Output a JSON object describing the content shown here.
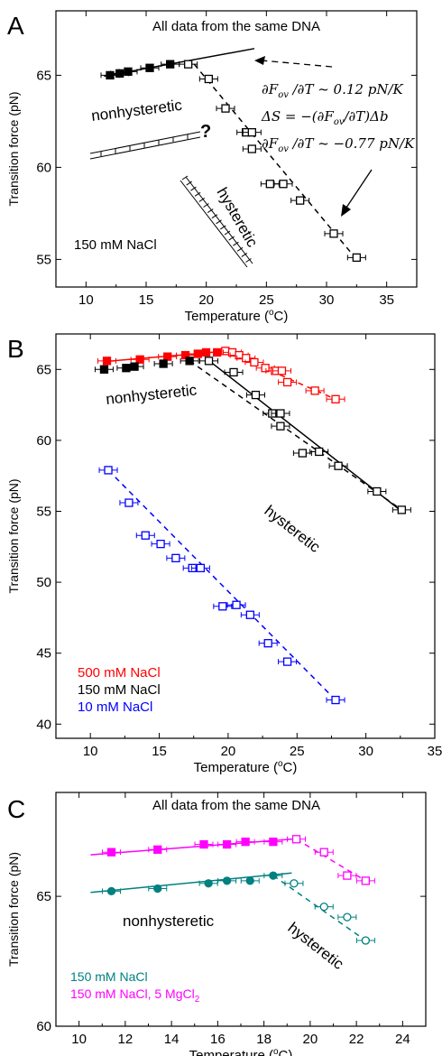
{
  "chart_data": [
    {
      "panel": "A",
      "type": "scatter",
      "annotation": "All data from the same DNA",
      "xlabel": "Temperature (",
      "xlabel_sup": "o",
      "xlabel_end": "C)",
      "ylabel": "Transition force (pN)",
      "xlim": [
        7.5,
        37.5
      ],
      "ylim": [
        53.5,
        68.5
      ],
      "xticks": [
        10,
        15,
        20,
        25,
        30,
        35
      ],
      "yticks": [
        55,
        60,
        65
      ],
      "salt_label": "150 mM NaCl",
      "state_labels": [
        "nonhysteretic",
        "hysteretic"
      ],
      "question_mark": "?",
      "equations": [
        "∂F/∂T ~ 0.12 pN/K",
        "ΔS = −(∂F/∂T)Δb",
        "∂F/∂T ~ −0.77 pN/K"
      ],
      "eq_var": "F",
      "eq_sub": "ov",
      "eq1_rhs": "~ 0.12  pN/K",
      "eq2_lhs": "ΔS = −(∂",
      "eq2_rhs": "/∂T)Δb",
      "eq3_rhs": "~ −0.77  pN/K",
      "series": [
        {
          "marker": "filled-square",
          "color": "#000000",
          "points": [
            [
              12.0,
              65.0
            ],
            [
              12.8,
              65.1
            ],
            [
              13.5,
              65.2
            ],
            [
              15.3,
              65.4
            ],
            [
              17.0,
              65.6
            ]
          ],
          "fit": [
            [
              11.5,
              64.95
            ],
            [
              24.0,
              66.45
            ]
          ]
        },
        {
          "marker": "open-square",
          "color": "#000000",
          "points": [
            [
              18.5,
              65.6
            ],
            [
              20.2,
              64.8
            ],
            [
              21.6,
              63.2
            ],
            [
              23.3,
              61.9
            ],
            [
              23.8,
              61.9
            ],
            [
              23.8,
              61.0
            ],
            [
              25.3,
              59.1
            ],
            [
              26.4,
              59.1
            ],
            [
              27.8,
              58.2
            ],
            [
              30.6,
              56.4
            ],
            [
              32.5,
              55.1
            ]
          ],
          "fit": [
            [
              19.0,
              65.6
            ],
            [
              32.5,
              55.0
            ]
          ]
        }
      ]
    },
    {
      "panel": "B",
      "type": "scatter",
      "xlabel": "Temperature (",
      "xlabel_sup": "o",
      "xlabel_end": "C)",
      "ylabel": "Transition force (pN)",
      "xlim": [
        7.5,
        35
      ],
      "ylim": [
        39,
        67.5
      ],
      "xticks": [
        10,
        15,
        20,
        25,
        30,
        35
      ],
      "yticks": [
        40,
        45,
        50,
        55,
        60,
        65
      ],
      "state_labels": [
        "nonhysteretic",
        "hysteretic"
      ],
      "series": [
        {
          "name": "500 mM NaCl",
          "marker": "filled-open-square",
          "color": "#ff0000",
          "points": [
            [
              11.2,
              65.6
            ],
            [
              13.6,
              65.7
            ],
            [
              15.6,
              65.9
            ],
            [
              16.9,
              66.0
            ],
            [
              17.8,
              66.1
            ],
            [
              18.4,
              66.2
            ],
            [
              19.2,
              66.2
            ],
            [
              19.8,
              66.3
            ],
            [
              20.3,
              66.2
            ],
            [
              20.8,
              66.0
            ],
            [
              21.3,
              65.8
            ],
            [
              21.9,
              65.5
            ],
            [
              22.7,
              65.1
            ],
            [
              23.4,
              64.9
            ],
            [
              23.9,
              64.9
            ],
            [
              24.3,
              64.1
            ],
            [
              26.3,
              63.5
            ],
            [
              27.8,
              62.9
            ]
          ],
          "fit": [
            [
              11.0,
              65.55
            ],
            [
              20.0,
              66.3
            ]
          ]
        },
        {
          "name": "150 mM NaCl",
          "marker": "filled-open-square",
          "color": "#000000",
          "points": [
            [
              11.0,
              65.0
            ],
            [
              12.6,
              65.1
            ],
            [
              13.2,
              65.2
            ],
            [
              15.3,
              65.4
            ],
            [
              17.2,
              65.6
            ],
            [
              18.6,
              65.6
            ],
            [
              20.4,
              64.8
            ],
            [
              22.0,
              63.2
            ],
            [
              23.2,
              61.9
            ],
            [
              23.8,
              61.9
            ],
            [
              23.8,
              61.0
            ],
            [
              25.4,
              59.1
            ],
            [
              26.6,
              59.2
            ],
            [
              28.0,
              58.2
            ],
            [
              30.8,
              56.4
            ],
            [
              32.6,
              55.1
            ]
          ],
          "fit": [
            [
              18.5,
              65.7
            ],
            [
              32.6,
              55.0
            ]
          ]
        },
        {
          "name": "10 mM NaCl",
          "marker": "open-square",
          "color": "#0000ff",
          "points": [
            [
              11.3,
              57.9
            ],
            [
              12.8,
              55.6
            ],
            [
              14.0,
              53.3
            ],
            [
              15.1,
              52.7
            ],
            [
              16.2,
              51.7
            ],
            [
              17.4,
              51.0
            ],
            [
              18.0,
              51.0
            ],
            [
              19.6,
              48.3
            ],
            [
              20.6,
              48.4
            ],
            [
              21.6,
              47.7
            ],
            [
              22.9,
              45.7
            ],
            [
              24.3,
              44.4
            ],
            [
              27.8,
              41.7
            ]
          ],
          "fit": [
            [
              11.3,
              57.9
            ],
            [
              27.8,
              41.7
            ]
          ]
        }
      ]
    },
    {
      "panel": "C",
      "type": "scatter",
      "annotation": "All data from the same DNA",
      "xlabel": "Temperature (",
      "xlabel_sup": "o",
      "xlabel_end": "C)",
      "ylabel": "Transition force (pN)",
      "xlim": [
        9,
        25
      ],
      "ylim": [
        60,
        69
      ],
      "xticks": [
        10,
        12,
        14,
        16,
        18,
        20,
        22,
        24
      ],
      "yticks": [
        60,
        65
      ],
      "state_labels": [
        "nonhysteretic",
        "hysteretic"
      ],
      "series": [
        {
          "name": "150 mM NaCl",
          "marker": "filled-open-circle",
          "color": "#008080",
          "points": [
            [
              11.4,
              65.2
            ],
            [
              13.4,
              65.3
            ],
            [
              15.6,
              65.5
            ],
            [
              16.4,
              65.6
            ],
            [
              17.4,
              65.6
            ],
            [
              18.4,
              65.8
            ],
            [
              19.3,
              65.5
            ],
            [
              20.6,
              64.6
            ],
            [
              21.6,
              64.2
            ],
            [
              22.4,
              63.3
            ]
          ],
          "fit": [
            [
              10.5,
              65.15
            ],
            [
              19.2,
              65.9
            ]
          ]
        },
        {
          "name": "150 mM NaCl, 5 MgCl",
          "name_sub": "2",
          "marker": "filled-open-square",
          "color": "#ff00ff",
          "points": [
            [
              11.4,
              66.7
            ],
            [
              13.4,
              66.8
            ],
            [
              15.4,
              67.0
            ],
            [
              16.4,
              67.0
            ],
            [
              17.2,
              67.1
            ],
            [
              18.4,
              67.1
            ],
            [
              19.4,
              67.2
            ],
            [
              20.6,
              66.7
            ],
            [
              21.6,
              65.8
            ],
            [
              22.4,
              65.6
            ]
          ],
          "fit": [
            [
              10.5,
              66.6
            ],
            [
              19.2,
              67.2
            ]
          ]
        }
      ]
    }
  ]
}
